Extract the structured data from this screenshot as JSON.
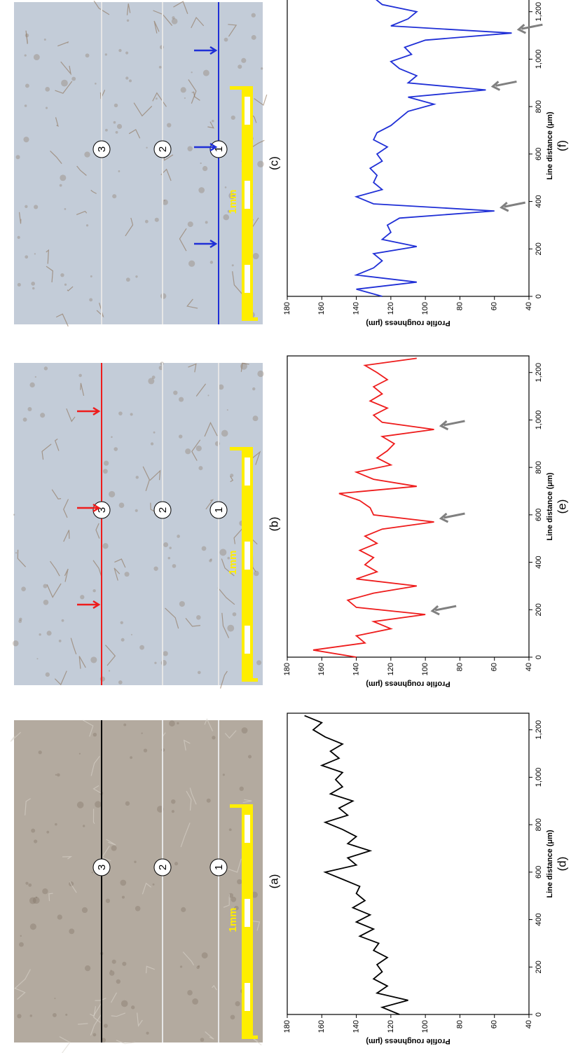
{
  "panels": [
    {
      "label": "(a)",
      "markers": [
        "1",
        "2",
        "3"
      ],
      "scale": "1mm",
      "tone": "#b3aa9f",
      "line_colors": [
        "#e6e6e6",
        "#e6e6e6",
        "#000000"
      ]
    },
    {
      "label": "(b)",
      "markers": [
        "1",
        "2",
        "3"
      ],
      "scale": "1mm",
      "tone": "#c3ccd8",
      "line_colors": [
        "#e6e6e6",
        "#e6e6e6",
        "#ee1c1c"
      ]
    },
    {
      "label": "(c)",
      "markers": [
        "1",
        "2",
        "3"
      ],
      "scale": "1mm",
      "tone": "#c3ccd8",
      "line_colors": [
        "#1f2fd6",
        "#e6e6e6",
        "#e6e6e6"
      ]
    }
  ],
  "chart_data": [
    {
      "type": "line",
      "label": "(d)",
      "x_label": "Line distance (μm)",
      "y_label": "Profile roughness (μm)",
      "x": [
        0,
        30,
        60,
        90,
        120,
        150,
        180,
        210,
        240,
        270,
        300,
        330,
        360,
        390,
        420,
        450,
        480,
        510,
        540,
        570,
        600,
        630,
        660,
        690,
        720,
        750,
        780,
        810,
        840,
        870,
        900,
        930,
        960,
        990,
        1020,
        1050,
        1080,
        1110,
        1140,
        1170,
        1200,
        1230,
        1260
      ],
      "series": [
        {
          "color": "#000000",
          "values": [
            115,
            125,
            110,
            128,
            122,
            130,
            125,
            128,
            122,
            130,
            127,
            138,
            130,
            140,
            132,
            142,
            135,
            140,
            138,
            148,
            158,
            140,
            145,
            132,
            145,
            140,
            148,
            158,
            145,
            150,
            142,
            155,
            148,
            152,
            148,
            160,
            150,
            155,
            148,
            158,
            165,
            160,
            170
          ]
        }
      ],
      "xlim": [
        0,
        1270
      ],
      "ylim": [
        40,
        180
      ],
      "xticks": [
        0,
        200,
        400,
        600,
        800,
        {
          "value": 1000,
          "label": "1,000"
        },
        {
          "value": 1200,
          "label": "1,200"
        }
      ],
      "yticks": [
        40,
        60,
        80,
        100,
        120,
        140,
        160,
        180
      ]
    },
    {
      "type": "line",
      "label": "(e)",
      "x_label": "Line distance (μm)",
      "y_label": "Profile roughness (μm)",
      "x": [
        0,
        30,
        60,
        90,
        120,
        150,
        180,
        210,
        240,
        270,
        300,
        330,
        360,
        390,
        420,
        450,
        480,
        510,
        540,
        570,
        600,
        630,
        660,
        690,
        720,
        750,
        780,
        810,
        840,
        870,
        900,
        930,
        960,
        990,
        1020,
        1050,
        1080,
        1110,
        1140,
        1170,
        1200,
        1230,
        1260
      ],
      "series": [
        {
          "color": "#ee1c1c",
          "values": [
            140,
            165,
            135,
            140,
            120,
            130,
            100,
            140,
            145,
            130,
            105,
            140,
            128,
            135,
            130,
            138,
            128,
            135,
            125,
            95,
            130,
            132,
            138,
            150,
            105,
            130,
            140,
            120,
            128,
            122,
            118,
            125,
            95,
            125,
            130,
            122,
            132,
            125,
            130,
            122,
            128,
            135,
            105
          ]
        }
      ],
      "xlim": [
        0,
        1270
      ],
      "ylim": [
        40,
        180
      ],
      "xticks": [
        0,
        200,
        400,
        600,
        800,
        {
          "value": 1000,
          "label": "1,000"
        },
        {
          "value": 1200,
          "label": "1,200"
        }
      ],
      "yticks": [
        40,
        60,
        80,
        100,
        120,
        140,
        160,
        180
      ]
    },
    {
      "type": "line",
      "label": "(f)",
      "x_label": "Line distance (μm)",
      "y_label": "Profile roughness (μm)",
      "x": [
        0,
        30,
        60,
        90,
        120,
        150,
        180,
        210,
        240,
        270,
        300,
        330,
        360,
        390,
        420,
        450,
        480,
        510,
        540,
        570,
        600,
        630,
        660,
        690,
        720,
        750,
        780,
        810,
        840,
        870,
        900,
        930,
        960,
        990,
        1020,
        1050,
        1080,
        1110,
        1140,
        1170,
        1200,
        1230,
        1260
      ],
      "series": [
        {
          "color": "#1f2fd6",
          "values": [
            125,
            140,
            105,
            140,
            130,
            125,
            130,
            105,
            125,
            120,
            122,
            115,
            60,
            130,
            140,
            125,
            130,
            128,
            132,
            125,
            128,
            122,
            130,
            128,
            120,
            115,
            110,
            95,
            110,
            65,
            110,
            105,
            115,
            120,
            108,
            112,
            100,
            50,
            120,
            110,
            105,
            125,
            130
          ]
        }
      ],
      "xlim": [
        0,
        1270
      ],
      "ylim": [
        40,
        180
      ],
      "xticks": [
        0,
        200,
        400,
        600,
        800,
        {
          "value": 1000,
          "label": "1,000"
        },
        {
          "value": 1200,
          "label": "1,200"
        }
      ],
      "yticks": [
        40,
        60,
        80,
        100,
        120,
        140,
        160,
        180
      ]
    }
  ]
}
